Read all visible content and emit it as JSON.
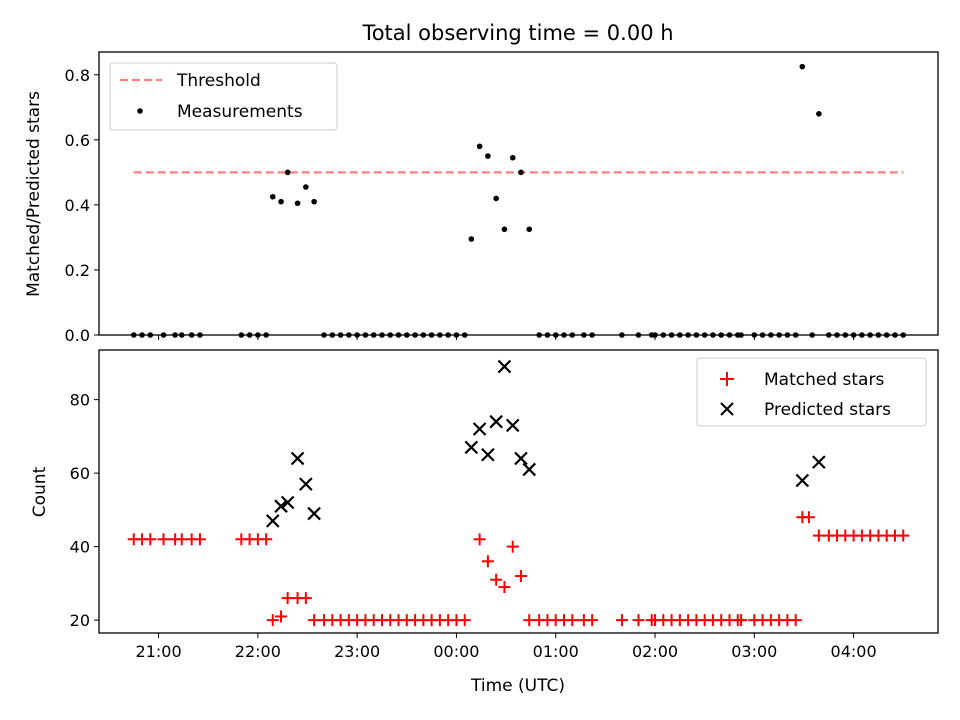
{
  "title": "Total observing time = 0.00 h",
  "chart_data": [
    {
      "type": "scatter",
      "ylabel": "Matched/Predicted stars",
      "xlabel": "",
      "xlim": [
        "20:24",
        "04:51"
      ],
      "ylim": [
        0,
        0.87
      ],
      "yticks": [
        "0.0",
        "0.2",
        "0.4",
        "0.6",
        "0.8"
      ],
      "grid": false,
      "legend_position": "top-left",
      "threshold": {
        "name": "Threshold",
        "value": 0.5,
        "color": "#ff7f7f",
        "x_range": [
          "20:45",
          "04:30"
        ]
      },
      "series": [
        {
          "name": "Measurements",
          "color": "#000000",
          "marker": "dot",
          "points": [
            [
              "20:45",
              0
            ],
            [
              "20:50",
              0
            ],
            [
              "20:55",
              0
            ],
            [
              "21:03",
              0
            ],
            [
              "21:10",
              0
            ],
            [
              "21:14",
              0
            ],
            [
              "21:20",
              0
            ],
            [
              "21:25",
              0
            ],
            [
              "21:50",
              0
            ],
            [
              "21:55",
              0
            ],
            [
              "22:00",
              0
            ],
            [
              "22:05",
              0
            ],
            [
              "22:09",
              0.425
            ],
            [
              "22:14",
              0.41
            ],
            [
              "22:18",
              0.5
            ],
            [
              "22:24",
              0.405
            ],
            [
              "22:29",
              0.455
            ],
            [
              "22:34",
              0.41
            ],
            [
              "22:40",
              0
            ],
            [
              "22:45",
              0
            ],
            [
              "22:50",
              0
            ],
            [
              "22:55",
              0
            ],
            [
              "23:00",
              0
            ],
            [
              "23:05",
              0
            ],
            [
              "23:10",
              0
            ],
            [
              "23:15",
              0
            ],
            [
              "23:20",
              0
            ],
            [
              "23:25",
              0
            ],
            [
              "23:30",
              0
            ],
            [
              "23:35",
              0
            ],
            [
              "23:40",
              0
            ],
            [
              "23:45",
              0
            ],
            [
              "23:50",
              0
            ],
            [
              "23:55",
              0
            ],
            [
              "00:00",
              0
            ],
            [
              "00:05",
              0
            ],
            [
              "00:09",
              0.295
            ],
            [
              "00:14",
              0.58
            ],
            [
              "00:19",
              0.55
            ],
            [
              "00:24",
              0.42
            ],
            [
              "00:29",
              0.325
            ],
            [
              "00:34",
              0.545
            ],
            [
              "00:39",
              0.5
            ],
            [
              "00:44",
              0.325
            ],
            [
              "00:50",
              0
            ],
            [
              "00:55",
              0
            ],
            [
              "01:00",
              0
            ],
            [
              "01:05",
              0
            ],
            [
              "01:10",
              0
            ],
            [
              "01:17",
              0
            ],
            [
              "01:22",
              0
            ],
            [
              "01:40",
              0
            ],
            [
              "01:50",
              0
            ],
            [
              "01:58",
              0
            ],
            [
              "02:00",
              0
            ],
            [
              "02:05",
              0
            ],
            [
              "02:10",
              0
            ],
            [
              "02:15",
              0
            ],
            [
              "02:20",
              0
            ],
            [
              "02:25",
              0
            ],
            [
              "02:30",
              0
            ],
            [
              "02:35",
              0
            ],
            [
              "02:40",
              0
            ],
            [
              "02:45",
              0
            ],
            [
              "02:50",
              0
            ],
            [
              "02:52",
              0
            ],
            [
              "03:00",
              0
            ],
            [
              "03:05",
              0
            ],
            [
              "03:10",
              0
            ],
            [
              "03:15",
              0
            ],
            [
              "03:20",
              0
            ],
            [
              "03:25",
              0
            ],
            [
              "03:29",
              0.825
            ],
            [
              "03:39",
              0.68
            ],
            [
              "03:35",
              0
            ],
            [
              "03:45",
              0
            ],
            [
              "03:50",
              0
            ],
            [
              "03:55",
              0
            ],
            [
              "04:00",
              0
            ],
            [
              "04:05",
              0
            ],
            [
              "04:10",
              0
            ],
            [
              "04:15",
              0
            ],
            [
              "04:20",
              0
            ],
            [
              "04:25",
              0
            ],
            [
              "04:30",
              0
            ]
          ]
        }
      ]
    },
    {
      "type": "scatter",
      "ylabel": "Count",
      "xlabel": "Time (UTC)",
      "xlim": [
        "20:24",
        "04:51"
      ],
      "ylim": [
        16.5,
        93.5
      ],
      "yticks": [
        "20",
        "40",
        "60",
        "80"
      ],
      "xticks": [
        "21:00",
        "22:00",
        "23:00",
        "00:00",
        "01:00",
        "02:00",
        "03:00",
        "04:00"
      ],
      "grid": false,
      "legend_position": "top-right",
      "series": [
        {
          "name": "Matched stars",
          "color": "#ff0000",
          "marker": "plus",
          "points": [
            [
              "20:45",
              42
            ],
            [
              "20:50",
              42
            ],
            [
              "20:55",
              42
            ],
            [
              "21:03",
              42
            ],
            [
              "21:10",
              42
            ],
            [
              "21:14",
              42
            ],
            [
              "21:20",
              42
            ],
            [
              "21:25",
              42
            ],
            [
              "21:50",
              42
            ],
            [
              "21:55",
              42
            ],
            [
              "22:00",
              42
            ],
            [
              "22:05",
              42
            ],
            [
              "22:09",
              20
            ],
            [
              "22:14",
              21
            ],
            [
              "22:18",
              26
            ],
            [
              "22:24",
              26
            ],
            [
              "22:29",
              26
            ],
            [
              "22:34",
              20
            ],
            [
              "22:40",
              20
            ],
            [
              "22:45",
              20
            ],
            [
              "22:50",
              20
            ],
            [
              "22:55",
              20
            ],
            [
              "23:00",
              20
            ],
            [
              "23:05",
              20
            ],
            [
              "23:10",
              20
            ],
            [
              "23:15",
              20
            ],
            [
              "23:20",
              20
            ],
            [
              "23:25",
              20
            ],
            [
              "23:30",
              20
            ],
            [
              "23:35",
              20
            ],
            [
              "23:40",
              20
            ],
            [
              "23:45",
              20
            ],
            [
              "23:50",
              20
            ],
            [
              "23:55",
              20
            ],
            [
              "00:00",
              20
            ],
            [
              "00:05",
              20
            ],
            [
              "00:14",
              42
            ],
            [
              "00:19",
              36
            ],
            [
              "00:24",
              31
            ],
            [
              "00:29",
              29
            ],
            [
              "00:34",
              40
            ],
            [
              "00:39",
              32
            ],
            [
              "00:44",
              20
            ],
            [
              "00:50",
              20
            ],
            [
              "00:55",
              20
            ],
            [
              "01:00",
              20
            ],
            [
              "01:05",
              20
            ],
            [
              "01:10",
              20
            ],
            [
              "01:17",
              20
            ],
            [
              "01:22",
              20
            ],
            [
              "01:40",
              20
            ],
            [
              "01:50",
              20
            ],
            [
              "01:58",
              20
            ],
            [
              "02:00",
              20
            ],
            [
              "02:05",
              20
            ],
            [
              "02:10",
              20
            ],
            [
              "02:15",
              20
            ],
            [
              "02:20",
              20
            ],
            [
              "02:25",
              20
            ],
            [
              "02:30",
              20
            ],
            [
              "02:35",
              20
            ],
            [
              "02:40",
              20
            ],
            [
              "02:45",
              20
            ],
            [
              "02:50",
              20
            ],
            [
              "02:52",
              20
            ],
            [
              "03:00",
              20
            ],
            [
              "03:05",
              20
            ],
            [
              "03:10",
              20
            ],
            [
              "03:15",
              20
            ],
            [
              "03:20",
              20
            ],
            [
              "03:25",
              20
            ],
            [
              "03:29",
              48
            ],
            [
              "03:33",
              48
            ],
            [
              "03:39",
              43
            ],
            [
              "03:45",
              43
            ],
            [
              "03:50",
              43
            ],
            [
              "03:55",
              43
            ],
            [
              "04:00",
              43
            ],
            [
              "04:05",
              43
            ],
            [
              "04:10",
              43
            ],
            [
              "04:15",
              43
            ],
            [
              "04:20",
              43
            ],
            [
              "04:25",
              43
            ],
            [
              "04:30",
              43
            ]
          ]
        },
        {
          "name": "Predicted stars",
          "color": "#000000",
          "marker": "x",
          "points": [
            [
              "22:09",
              47
            ],
            [
              "22:14",
              51
            ],
            [
              "22:18",
              52
            ],
            [
              "22:24",
              64
            ],
            [
              "22:29",
              57
            ],
            [
              "22:34",
              49
            ],
            [
              "00:09",
              67
            ],
            [
              "00:14",
              72
            ],
            [
              "00:19",
              65
            ],
            [
              "00:24",
              74
            ],
            [
              "00:29",
              89
            ],
            [
              "00:34",
              73
            ],
            [
              "00:39",
              64
            ],
            [
              "00:44",
              61
            ],
            [
              "03:29",
              58
            ],
            [
              "03:39",
              63
            ]
          ]
        }
      ]
    }
  ]
}
